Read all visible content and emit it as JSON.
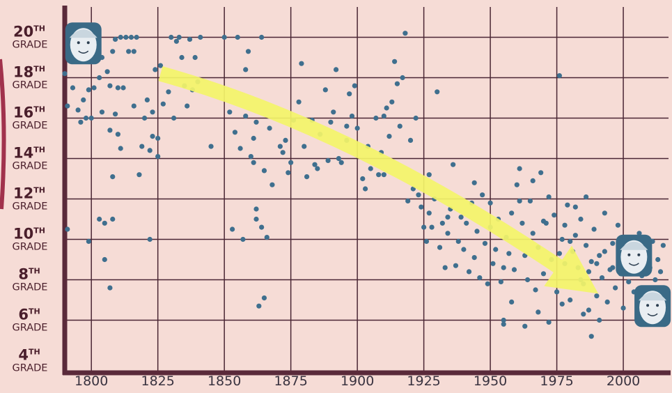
{
  "chart_data": {
    "type": "scatter",
    "title": "",
    "xlabel": "",
    "ylabel": "",
    "xlim": [
      1790,
      2017
    ],
    "ylim": [
      3.5,
      21.5
    ],
    "grid": true,
    "colors": {
      "background": "#f6dcd6",
      "grid": "#4a2634",
      "axis": "#5a2a3a",
      "points": "#3f6f8e",
      "arrow": "#f4f56a"
    },
    "x_ticks": [
      {
        "value": 1800,
        "label": "1800"
      },
      {
        "value": 1825,
        "label": "1825"
      },
      {
        "value": 1850,
        "label": "1850"
      },
      {
        "value": 1875,
        "label": "1875"
      },
      {
        "value": 1900,
        "label": "1900"
      },
      {
        "value": 1925,
        "label": "1925"
      },
      {
        "value": 1950,
        "label": "1950"
      },
      {
        "value": 1975,
        "label": "1975"
      },
      {
        "value": 2000,
        "label": "2000"
      }
    ],
    "y_ticks": [
      {
        "value": 20,
        "ordinal": "20",
        "suffix": "TH",
        "grade": "GRADE"
      },
      {
        "value": 18,
        "ordinal": "18",
        "suffix": "TH",
        "grade": "GRADE"
      },
      {
        "value": 16,
        "ordinal": "16",
        "suffix": "TH",
        "grade": "GRADE"
      },
      {
        "value": 14,
        "ordinal": "14",
        "suffix": "TH",
        "grade": "GRADE"
      },
      {
        "value": 12,
        "ordinal": "12",
        "suffix": "TH",
        "grade": "GRADE"
      },
      {
        "value": 10,
        "ordinal": "10",
        "suffix": "TH",
        "grade": "GRADE"
      },
      {
        "value": 8,
        "ordinal": "8",
        "suffix": "TH",
        "grade": "GRADE"
      },
      {
        "value": 6,
        "ordinal": "6",
        "suffix": "TH",
        "grade": "GRADE"
      },
      {
        "value": 4,
        "ordinal": "4",
        "suffix": "TH",
        "grade": "GRADE"
      }
    ],
    "trend_arrow": {
      "from": [
        1826,
        18.2
      ],
      "via": [
        1900,
        15.5
      ],
      "to": [
        1983,
        8.0
      ]
    },
    "portraits": [
      {
        "name": "portrait-washington-icon",
        "x": 1797,
        "y": 19.7
      },
      {
        "name": "portrait-obama-icon",
        "x": 2004,
        "y": 9.2
      },
      {
        "name": "portrait-trump-icon",
        "x": 2011,
        "y": 6.7
      }
    ],
    "points": [
      [
        1790,
        18.2
      ],
      [
        1791,
        10.5
      ],
      [
        1791,
        16.6
      ],
      [
        1793,
        17.5
      ],
      [
        1795,
        16.4
      ],
      [
        1796,
        15.8
      ],
      [
        1797,
        16.9
      ],
      [
        1798,
        16.0
      ],
      [
        1799,
        17.4
      ],
      [
        1799,
        9.9
      ],
      [
        1800,
        16.0
      ],
      [
        1801,
        17.5
      ],
      [
        1802,
        19.4
      ],
      [
        1803,
        18.0
      ],
      [
        1803,
        11.0
      ],
      [
        1804,
        19.0
      ],
      [
        1804,
        16.3
      ],
      [
        1805,
        10.8
      ],
      [
        1805,
        9.0
      ],
      [
        1806,
        18.3
      ],
      [
        1807,
        17.6
      ],
      [
        1807,
        15.4
      ],
      [
        1807,
        7.6
      ],
      [
        1808,
        19.3
      ],
      [
        1808,
        11.0
      ],
      [
        1808,
        13.1
      ],
      [
        1809,
        19.9
      ],
      [
        1809,
        16.2
      ],
      [
        1810,
        17.5
      ],
      [
        1810,
        15.2
      ],
      [
        1811,
        14.5
      ],
      [
        1811,
        20.0
      ],
      [
        1812,
        17.5
      ],
      [
        1813,
        20.0
      ],
      [
        1814,
        19.3
      ],
      [
        1815,
        20.0
      ],
      [
        1816,
        16.6
      ],
      [
        1816,
        19.3
      ],
      [
        1817,
        20.0
      ],
      [
        1818,
        13.2
      ],
      [
        1819,
        14.6
      ],
      [
        1820,
        16.0
      ],
      [
        1821,
        16.9
      ],
      [
        1822,
        14.4
      ],
      [
        1822,
        10.0
      ],
      [
        1823,
        15.1
      ],
      [
        1823,
        16.3
      ],
      [
        1824,
        18.4
      ],
      [
        1825,
        14.1
      ],
      [
        1825,
        15.0
      ],
      [
        1826,
        18.6
      ],
      [
        1827,
        16.7
      ],
      [
        1829,
        17.3
      ],
      [
        1830,
        20.0
      ],
      [
        1831,
        16.0
      ],
      [
        1832,
        19.8
      ],
      [
        1833,
        20.0
      ],
      [
        1834,
        19.0
      ],
      [
        1835,
        17.6
      ],
      [
        1836,
        16.6
      ],
      [
        1837,
        19.9
      ],
      [
        1838,
        17.4
      ],
      [
        1839,
        19.0
      ],
      [
        1840,
        17.8
      ],
      [
        1841,
        20.0
      ],
      [
        1845,
        14.6
      ],
      [
        1850,
        20.0
      ],
      [
        1852,
        16.3
      ],
      [
        1853,
        10.5
      ],
      [
        1854,
        15.3
      ],
      [
        1855,
        20.0
      ],
      [
        1856,
        14.5
      ],
      [
        1857,
        10.0
      ],
      [
        1858,
        16.1
      ],
      [
        1858,
        18.4
      ],
      [
        1859,
        19.3
      ],
      [
        1860,
        14.1
      ],
      [
        1861,
        15.0
      ],
      [
        1861,
        13.8
      ],
      [
        1862,
        11.5
      ],
      [
        1862,
        11.0
      ],
      [
        1862,
        15.8
      ],
      [
        1863,
        6.7
      ],
      [
        1864,
        10.6
      ],
      [
        1864,
        20.0
      ],
      [
        1865,
        13.4
      ],
      [
        1865,
        7.1
      ],
      [
        1866,
        10.1
      ],
      [
        1867,
        15.5
      ],
      [
        1868,
        12.7
      ],
      [
        1871,
        14.6
      ],
      [
        1872,
        14.3
      ],
      [
        1873,
        14.9
      ],
      [
        1874,
        13.3
      ],
      [
        1875,
        13.8
      ],
      [
        1876,
        15.9
      ],
      [
        1878,
        16.8
      ],
      [
        1879,
        18.7
      ],
      [
        1880,
        14.6
      ],
      [
        1881,
        13.1
      ],
      [
        1883,
        15.9
      ],
      [
        1884,
        13.7
      ],
      [
        1885,
        13.5
      ],
      [
        1886,
        15.2
      ],
      [
        1888,
        17.4
      ],
      [
        1889,
        13.9
      ],
      [
        1890,
        15.8
      ],
      [
        1891,
        16.3
      ],
      [
        1892,
        18.4
      ],
      [
        1893,
        14.0
      ],
      [
        1894,
        13.8
      ],
      [
        1896,
        14.9
      ],
      [
        1897,
        17.2
      ],
      [
        1898,
        16.1
      ],
      [
        1899,
        17.6
      ],
      [
        1900,
        15.5
      ],
      [
        1902,
        13.0
      ],
      [
        1903,
        12.5
      ],
      [
        1904,
        14.6
      ],
      [
        1905,
        13.5
      ],
      [
        1907,
        16.0
      ],
      [
        1908,
        13.2
      ],
      [
        1909,
        14.3
      ],
      [
        1910,
        16.1
      ],
      [
        1911,
        16.5
      ],
      [
        1912,
        15.1
      ],
      [
        1913,
        16.8
      ],
      [
        1914,
        18.8
      ],
      [
        1915,
        17.7
      ],
      [
        1916,
        15.6
      ],
      [
        1917,
        18.0
      ],
      [
        1918,
        20.2
      ],
      [
        1919,
        11.9
      ],
      [
        1920,
        14.9
      ],
      [
        1921,
        12.5
      ],
      [
        1922,
        16.0
      ],
      [
        1923,
        12.2
      ],
      [
        1924,
        11.6
      ],
      [
        1925,
        10.6
      ],
      [
        1926,
        9.9
      ],
      [
        1927,
        11.3
      ],
      [
        1928,
        10.6
      ],
      [
        1929,
        12.0
      ],
      [
        1930,
        17.3
      ],
      [
        1931,
        9.6
      ],
      [
        1932,
        10.8
      ],
      [
        1933,
        8.6
      ],
      [
        1934,
        10.3
      ],
      [
        1935,
        11.5
      ],
      [
        1936,
        13.7
      ],
      [
        1937,
        8.7
      ],
      [
        1938,
        9.9
      ],
      [
        1939,
        11.1
      ],
      [
        1940,
        9.5
      ],
      [
        1941,
        10.8
      ],
      [
        1942,
        8.4
      ],
      [
        1943,
        11.8
      ],
      [
        1944,
        9.1
      ],
      [
        1945,
        10.4
      ],
      [
        1946,
        8.1
      ],
      [
        1947,
        12.2
      ],
      [
        1948,
        9.8
      ],
      [
        1949,
        7.8
      ],
      [
        1950,
        10.6
      ],
      [
        1951,
        8.8
      ],
      [
        1952,
        9.5
      ],
      [
        1953,
        11.0
      ],
      [
        1954,
        7.9
      ],
      [
        1955,
        8.6
      ],
      [
        1955,
        5.8
      ],
      [
        1955,
        6.0
      ],
      [
        1956,
        10.1
      ],
      [
        1957,
        9.3
      ],
      [
        1958,
        11.3
      ],
      [
        1959,
        8.5
      ],
      [
        1960,
        12.7
      ],
      [
        1961,
        13.5
      ],
      [
        1962,
        10.8
      ],
      [
        1963,
        9.2
      ],
      [
        1964,
        8.0
      ],
      [
        1965,
        11.9
      ],
      [
        1966,
        10.3
      ],
      [
        1967,
        7.5
      ],
      [
        1968,
        9.6
      ],
      [
        1969,
        13.3
      ],
      [
        1970,
        8.3
      ],
      [
        1971,
        10.8
      ],
      [
        1972,
        12.1
      ],
      [
        1973,
        9.0
      ],
      [
        1974,
        11.2
      ],
      [
        1975,
        7.4
      ],
      [
        1976,
        18.1
      ],
      [
        1977,
        10.0
      ],
      [
        1978,
        8.8
      ],
      [
        1979,
        11.7
      ],
      [
        1980,
        7.0
      ],
      [
        1981,
        9.4
      ],
      [
        1982,
        10.2
      ],
      [
        1983,
        8.6
      ],
      [
        1984,
        11.0
      ],
      [
        1985,
        7.8
      ],
      [
        1986,
        9.7
      ],
      [
        1987,
        6.5
      ],
      [
        1988,
        8.9
      ],
      [
        1989,
        10.5
      ],
      [
        1990,
        7.2
      ],
      [
        1991,
        9.2
      ],
      [
        1992,
        8.1
      ],
      [
        1993,
        11.3
      ],
      [
        1994,
        6.9
      ],
      [
        1995,
        8.5
      ],
      [
        1996,
        9.8
      ],
      [
        1997,
        7.6
      ],
      [
        1998,
        10.7
      ],
      [
        1999,
        8.3
      ],
      [
        2000,
        6.6
      ],
      [
        2001,
        9.0
      ],
      [
        2002,
        7.9
      ],
      [
        2003,
        9.6
      ],
      [
        2004,
        7.4
      ],
      [
        2005,
        8.8
      ],
      [
        2006,
        10.3
      ],
      [
        2007,
        8.2
      ],
      [
        2008,
        9.3
      ],
      [
        2009,
        7.1
      ],
      [
        2010,
        8.6
      ],
      [
        2011,
        9.9
      ],
      [
        2012,
        8.0
      ],
      [
        2013,
        9.0
      ],
      [
        2014,
        8.4
      ],
      [
        2015,
        9.7
      ],
      [
        1988,
        5.2
      ],
      [
        1991,
        6.0
      ],
      [
        1985,
        6.3
      ],
      [
        1977,
        6.8
      ],
      [
        1972,
        5.9
      ],
      [
        1968,
        6.4
      ],
      [
        1963,
        5.7
      ],
      [
        1958,
        6.9
      ],
      [
        1976,
        9.3
      ],
      [
        1980,
        9.9
      ],
      [
        1984,
        8.0
      ],
      [
        1987,
        8.4
      ],
      [
        1990,
        8.8
      ],
      [
        1993,
        9.4
      ],
      [
        1996,
        8.6
      ],
      [
        1999,
        9.3
      ],
      [
        2002,
        8.7
      ],
      [
        1978,
        10.7
      ],
      [
        1982,
        11.6
      ],
      [
        1986,
        12.1
      ],
      [
        1970,
        10.9
      ],
      [
        1966,
        12.9
      ],
      [
        1961,
        11.9
      ],
      [
        1944,
        12.8
      ],
      [
        1950,
        11.8
      ],
      [
        1934,
        11.1
      ],
      [
        1927,
        13.2
      ],
      [
        1910,
        13.2
      ],
      [
        1896,
        15.6
      ]
    ]
  }
}
